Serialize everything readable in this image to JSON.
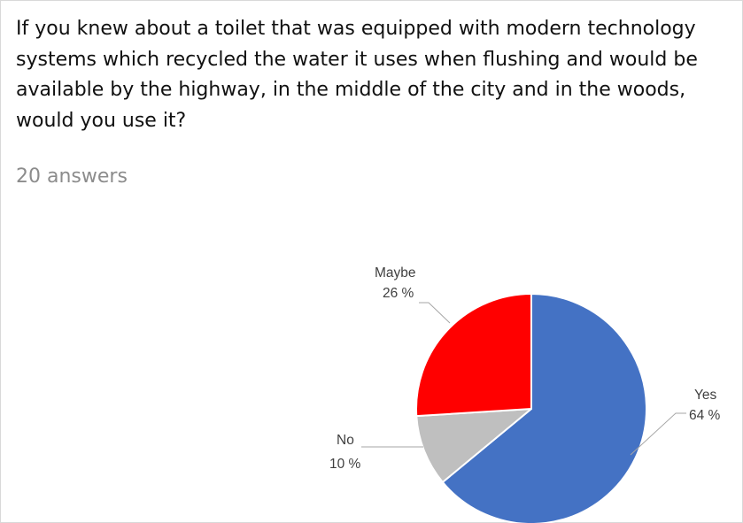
{
  "question": "If you knew about a toilet that was equipped with modern technology systems which recycled the water it uses when flushing and would be available by the highway, in the middle of the city and in the woods, would you use it?",
  "answer_count": "20 answers",
  "chart_data": {
    "type": "pie",
    "title": "",
    "slices": [
      {
        "name": "Yes",
        "value": 64,
        "label": "64 %",
        "color": "#4472c4"
      },
      {
        "name": "No",
        "value": 10,
        "label": "10 %",
        "color": "#bfbfbf"
      },
      {
        "name": "Maybe",
        "value": 26,
        "label": "26 %",
        "color": "#ff0000"
      }
    ],
    "start_angle_deg": 0,
    "direction": "clockwise"
  }
}
